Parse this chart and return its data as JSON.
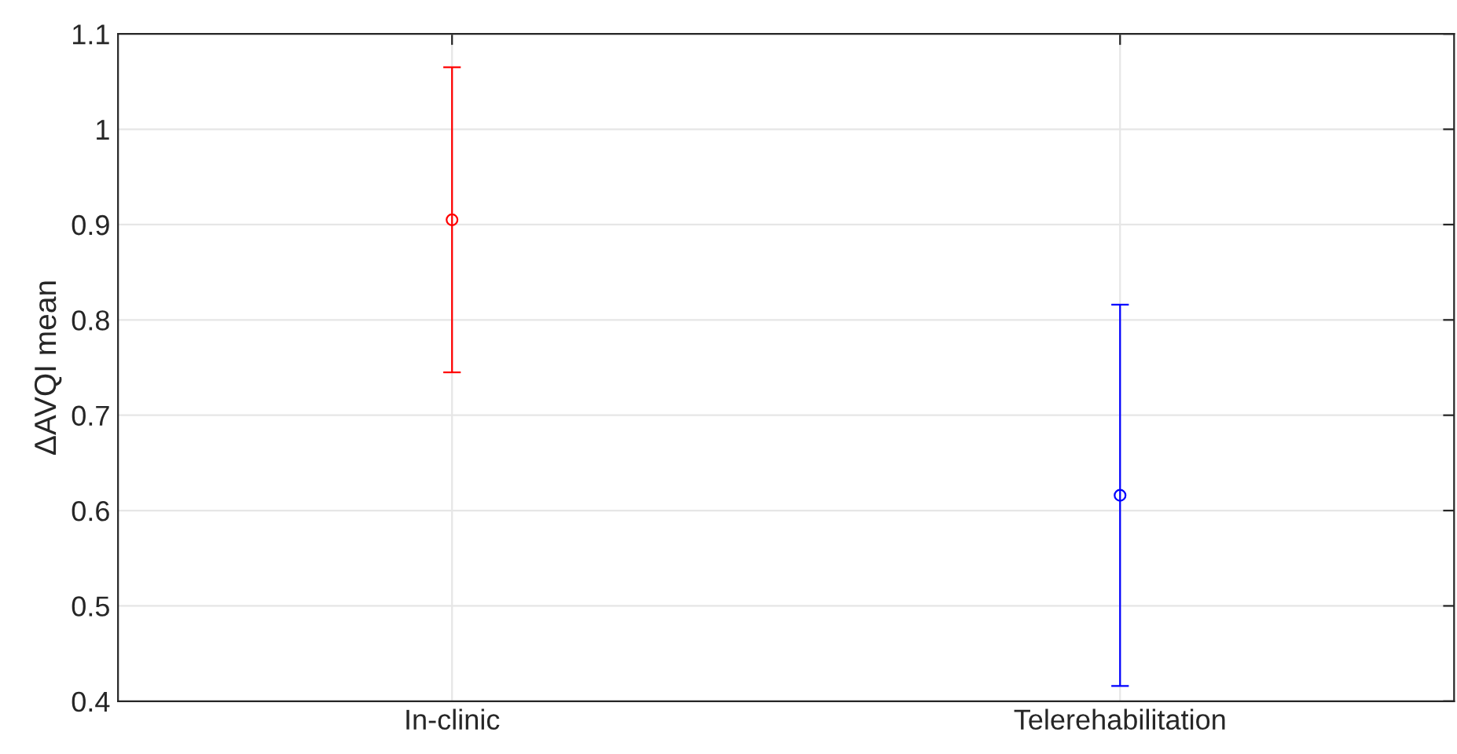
{
  "chart_data": {
    "type": "scatter",
    "ylabel": "ΔAVQI mean",
    "categories": [
      "In-clinic",
      "Telerehabilitation"
    ],
    "values": [
      0.905,
      0.616
    ],
    "errors": [
      0.16,
      0.2
    ],
    "colors": [
      "#ff0000",
      "#0000ff"
    ],
    "marker": "circle",
    "ylim": [
      0.4,
      1.1
    ],
    "yticks": [
      0.4,
      0.5,
      0.6,
      0.7,
      0.8,
      0.9,
      1,
      1.1
    ],
    "grid": true
  }
}
